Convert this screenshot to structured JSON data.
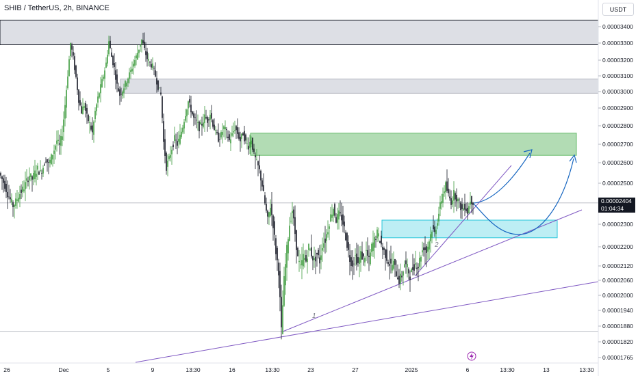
{
  "header": {
    "title": "SHIB / TetherUS, 2h, BINANCE",
    "currency": "USDT"
  },
  "current_price": {
    "value": "0.00002404",
    "countdown": "01:04:34"
  },
  "watermark_icon": "lightning-bolt-icon",
  "colors": {
    "candle_up": "#26a69a",
    "candle_down": "#131722",
    "candle_wick_up": "#3c9a3c",
    "resistance_zone": "#d1d4dc",
    "target_zone": "#a5d6a7",
    "support_zone": "#b2ebf2",
    "trendline": "#7e57c2",
    "projection_arrow": "#1565c0"
  },
  "chart_data": {
    "type": "candlestick",
    "price_axis": {
      "ticks": [
        "0.00003400",
        "0.00003300",
        "0.00003200",
        "0.00003100",
        "0.00003000",
        "0.00002900",
        "0.00002800",
        "0.00002700",
        "0.00002600",
        "0.00002500",
        "0.00002300",
        "0.00002200",
        "0.00002120",
        "0.00002060",
        "0.00002000",
        "0.00001940",
        "0.00001880",
        "0.00001820",
        "0.00001765"
      ],
      "tick_values": [
        3.4e-05,
        3.3e-05,
        3.2e-05,
        3.1e-05,
        3e-05,
        2.9e-05,
        2.8e-05,
        2.7e-05,
        2.6e-05,
        2.5e-05,
        2.3e-05,
        2.2e-05,
        2.12e-05,
        2.06e-05,
        2e-05,
        1.94e-05,
        1.88e-05,
        1.82e-05,
        1.765e-05
      ]
    },
    "time_axis": {
      "labels": [
        "26",
        "Dec",
        "5",
        "9",
        "13:30",
        "16",
        "13:30",
        "23",
        "27",
        "2025",
        "6",
        "13:30",
        "13",
        "13:30"
      ]
    },
    "zones": [
      {
        "name": "resistance-zone-top",
        "from": 3.29e-05,
        "to": 3.44e-05
      },
      {
        "name": "resistance-zone-mid",
        "from": 2.99e-05,
        "to": 3.08e-05
      },
      {
        "name": "target-zone",
        "from": 2.64e-05,
        "to": 2.76e-05
      },
      {
        "name": "support-zone",
        "from": 2.24e-05,
        "to": 2.32e-05
      }
    ],
    "horizontal_lines": [
      2.404e-05,
      1.86e-05
    ],
    "wave_labels": [
      "1",
      "2"
    ],
    "path": [
      [
        0,
        2.55e-05
      ],
      [
        4,
        2.52e-05
      ],
      [
        8,
        2.49e-05
      ],
      [
        12,
        2.45e-05
      ],
      [
        16,
        2.42e-05
      ],
      [
        20,
        2.39e-05
      ],
      [
        24,
        2.41e-05
      ],
      [
        28,
        2.44e-05
      ],
      [
        32,
        2.46e-05
      ],
      [
        36,
        2.48e-05
      ],
      [
        40,
        2.51e-05
      ],
      [
        44,
        2.54e-05
      ],
      [
        48,
        2.52e-05
      ],
      [
        52,
        2.55e-05
      ],
      [
        56,
        2.57e-05
      ],
      [
        60,
        2.55e-05
      ],
      [
        64,
        2.58e-05
      ],
      [
        68,
        2.62e-05
      ],
      [
        72,
        2.59e-05
      ],
      [
        76,
        2.63e-05
      ],
      [
        80,
        2.67e-05
      ],
      [
        84,
        2.72e-05
      ],
      [
        88,
        2.69e-05
      ],
      [
        92,
        2.76e-05
      ],
      [
        96,
        2.92e-05
      ],
      [
        100,
        3.11e-05
      ],
      [
        104,
        3.3e-05
      ],
      [
        108,
        3.21e-05
      ],
      [
        112,
        3.09e-05
      ],
      [
        116,
        2.95e-05
      ],
      [
        120,
        2.88e-05
      ],
      [
        124,
        2.92e-05
      ],
      [
        128,
        2.85e-05
      ],
      [
        132,
        2.81e-05
      ],
      [
        136,
        2.76e-05
      ],
      [
        140,
        2.88e-05
      ],
      [
        144,
        2.96e-05
      ],
      [
        148,
        3.03e-05
      ],
      [
        152,
        3.1e-05
      ],
      [
        156,
        3.18e-05
      ],
      [
        160,
        3.31e-05
      ],
      [
        164,
        3.22e-05
      ],
      [
        168,
        3.15e-05
      ],
      [
        172,
        3.04e-05
      ],
      [
        176,
        2.98e-05
      ],
      [
        180,
        3.01e-05
      ],
      [
        184,
        3.05e-05
      ],
      [
        188,
        3.09e-05
      ],
      [
        192,
        3.13e-05
      ],
      [
        196,
        3.18e-05
      ],
      [
        200,
        3.22e-05
      ],
      [
        204,
        3.27e-05
      ],
      [
        208,
        3.32e-05
      ],
      [
        212,
        3.26e-05
      ],
      [
        216,
        3.21e-05
      ],
      [
        220,
        3.18e-05
      ],
      [
        224,
        3.16e-05
      ],
      [
        228,
        3.1e-05
      ],
      [
        232,
        3.03e-05
      ],
      [
        236,
        2.98e-05
      ],
      [
        240,
        2.71e-05
      ],
      [
        244,
        2.58e-05
      ],
      [
        248,
        2.62e-05
      ],
      [
        252,
        2.68e-05
      ],
      [
        256,
        2.73e-05
      ],
      [
        260,
        2.7e-05
      ],
      [
        264,
        2.74e-05
      ],
      [
        268,
        2.8e-05
      ],
      [
        272,
        2.87e-05
      ],
      [
        276,
        2.94e-05
      ],
      [
        280,
        2.89e-05
      ],
      [
        284,
        2.84e-05
      ],
      [
        288,
        2.82e-05
      ],
      [
        292,
        2.79e-05
      ],
      [
        296,
        2.81e-05
      ],
      [
        300,
        2.85e-05
      ],
      [
        304,
        2.83e-05
      ],
      [
        308,
        2.87e-05
      ],
      [
        312,
        2.81e-05
      ],
      [
        316,
        2.76e-05
      ],
      [
        320,
        2.73e-05
      ],
      [
        324,
        2.75e-05
      ],
      [
        328,
        2.79e-05
      ],
      [
        332,
        2.76e-05
      ],
      [
        336,
        2.72e-05
      ],
      [
        340,
        2.75e-05
      ],
      [
        344,
        2.79e-05
      ],
      [
        348,
        2.76e-05
      ],
      [
        352,
        2.72e-05
      ],
      [
        356,
        2.76e-05
      ],
      [
        360,
        2.71e-05
      ],
      [
        364,
        2.69e-05
      ],
      [
        368,
        2.73e-05
      ],
      [
        372,
        2.64e-05
      ],
      [
        376,
        2.6e-05
      ],
      [
        380,
        2.56e-05
      ],
      [
        384,
        2.49e-05
      ],
      [
        388,
        2.4e-05
      ],
      [
        392,
        2.32e-05
      ],
      [
        396,
        2.39e-05
      ],
      [
        400,
        2.3e-05
      ],
      [
        404,
        2.18e-05
      ],
      [
        408,
        2.1e-05
      ],
      [
        412,
        1.86e-05
      ],
      [
        416,
        2.06e-05
      ],
      [
        420,
        2.19e-05
      ],
      [
        424,
        2.3e-05
      ],
      [
        428,
        2.37e-05
      ],
      [
        432,
        2.26e-05
      ],
      [
        436,
        2.15e-05
      ],
      [
        440,
        2.11e-05
      ],
      [
        444,
        2.16e-05
      ],
      [
        448,
        2.14e-05
      ],
      [
        452,
        2.2e-05
      ],
      [
        456,
        2.17e-05
      ],
      [
        460,
        2.14e-05
      ],
      [
        464,
        2.17e-05
      ],
      [
        468,
        2.14e-05
      ],
      [
        472,
        2.21e-05
      ],
      [
        476,
        2.23e-05
      ],
      [
        480,
        2.28e-05
      ],
      [
        484,
        2.34e-05
      ],
      [
        488,
        2.38e-05
      ],
      [
        492,
        2.32e-05
      ],
      [
        496,
        2.35e-05
      ],
      [
        500,
        2.33e-05
      ],
      [
        504,
        2.28e-05
      ],
      [
        508,
        2.21e-05
      ],
      [
        512,
        2.15e-05
      ],
      [
        516,
        2.13e-05
      ],
      [
        520,
        2.16e-05
      ],
      [
        524,
        2.13e-05
      ],
      [
        528,
        2.17e-05
      ],
      [
        532,
        2.15e-05
      ],
      [
        536,
        2.18e-05
      ],
      [
        540,
        2.14e-05
      ],
      [
        544,
        2.2e-05
      ],
      [
        548,
        2.23e-05
      ],
      [
        552,
        2.26e-05
      ],
      [
        556,
        2.23e-05
      ],
      [
        560,
        2.19e-05
      ],
      [
        564,
        2.17e-05
      ],
      [
        568,
        2.14e-05
      ],
      [
        572,
        2.12e-05
      ],
      [
        576,
        2.13e-05
      ],
      [
        580,
        2.09e-05
      ],
      [
        584,
        2.06e-05
      ],
      [
        588,
        2.08e-05
      ],
      [
        592,
        2.13e-05
      ],
      [
        596,
        2.11e-05
      ],
      [
        600,
        2.08e-05
      ],
      [
        604,
        2.11e-05
      ],
      [
        608,
        2.13e-05
      ],
      [
        612,
        2.12e-05
      ],
      [
        616,
        2.17e-05
      ],
      [
        620,
        2.2e-05
      ],
      [
        624,
        2.18e-05
      ],
      [
        628,
        2.23e-05
      ],
      [
        632,
        2.28e-05
      ],
      [
        636,
        2.26e-05
      ],
      [
        640,
        2.32e-05
      ],
      [
        644,
        2.39e-05
      ],
      [
        648,
        2.45e-05
      ],
      [
        652,
        2.49e-05
      ],
      [
        656,
        2.44e-05
      ],
      [
        660,
        2.41e-05
      ],
      [
        664,
        2.45e-05
      ],
      [
        668,
        2.43e-05
      ],
      [
        672,
        2.4e-05
      ],
      [
        676,
        2.37e-05
      ],
      [
        680,
        2.39e-05
      ],
      [
        684,
        2.36e-05
      ],
      [
        688,
        2.42e-05
      ],
      [
        692,
        2.41e-05
      ]
    ]
  }
}
